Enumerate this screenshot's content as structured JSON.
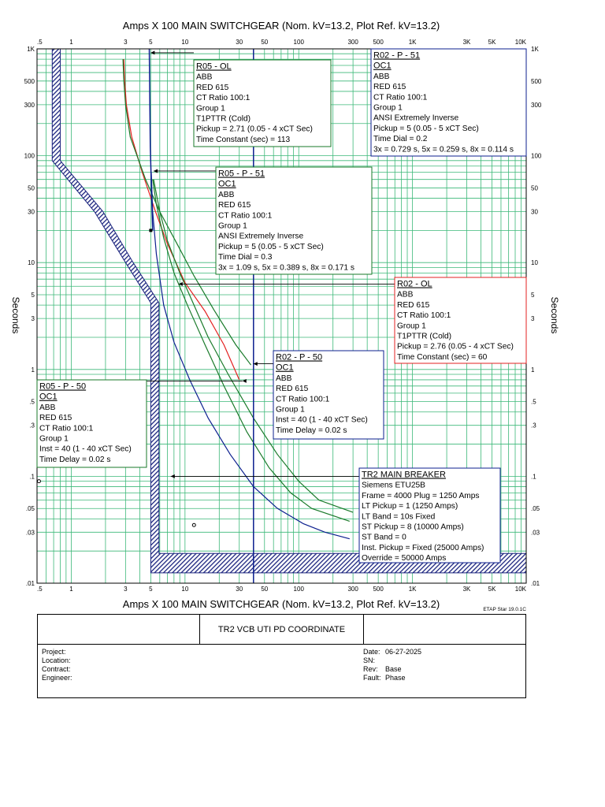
{
  "chart_data": {
    "type": "line",
    "title_top": "Amps  X  100   MAIN SWITCHGEAR (Nom. kV=13.2, Plot Ref. kV=13.2)",
    "title_bottom": "Amps  X  100   MAIN SWITCHGEAR (Nom. kV=13.2, Plot Ref. kV=13.2)",
    "ylabel": "Seconds",
    "x_scale": "log",
    "y_scale": "log",
    "xlim": [
      0.5,
      10000
    ],
    "ylim": [
      0.01,
      1000
    ],
    "x_ticks": [
      {
        "v": 0.5,
        "t": ".5"
      },
      {
        "v": 1,
        "t": "1"
      },
      {
        "v": 3,
        "t": "3"
      },
      {
        "v": 5,
        "t": "5"
      },
      {
        "v": 10,
        "t": "10"
      },
      {
        "v": 30,
        "t": "30"
      },
      {
        "v": 50,
        "t": "50"
      },
      {
        "v": 100,
        "t": "100"
      },
      {
        "v": 300,
        "t": "300"
      },
      {
        "v": 500,
        "t": "500"
      },
      {
        "v": 1000,
        "t": "1K"
      },
      {
        "v": 3000,
        "t": "3K"
      },
      {
        "v": 5000,
        "t": "5K"
      },
      {
        "v": 10000,
        "t": "10K"
      }
    ],
    "y_ticks": [
      {
        "v": 0.01,
        "t": ".01"
      },
      {
        "v": 0.03,
        "t": ".03"
      },
      {
        "v": 0.05,
        "t": ".05"
      },
      {
        "v": 0.1,
        "t": ".1"
      },
      {
        "v": 0.3,
        "t": ".3"
      },
      {
        "v": 0.5,
        "t": ".5"
      },
      {
        "v": 1,
        "t": "1"
      },
      {
        "v": 3,
        "t": "3"
      },
      {
        "v": 5,
        "t": "5"
      },
      {
        "v": 10,
        "t": "10"
      },
      {
        "v": 30,
        "t": "30"
      },
      {
        "v": 50,
        "t": "50"
      },
      {
        "v": 100,
        "t": "100"
      },
      {
        "v": 300,
        "t": "300"
      },
      {
        "v": 500,
        "t": "500"
      },
      {
        "v": 1000,
        "t": "1K"
      }
    ],
    "grid": true,
    "colors": {
      "grid": "#3cb878",
      "frame": "#000000",
      "red": "#e32020",
      "green": "#1a7a2a",
      "navy": "#0c1f8f",
      "hatch": "#1a237e"
    },
    "series": [
      {
        "id": "r02_ol",
        "color": "red",
        "width": 1.2,
        "points": [
          [
            2.9,
            800
          ],
          [
            2.95,
            500
          ],
          [
            3.05,
            300
          ],
          [
            3.4,
            150
          ],
          [
            4.2,
            70
          ],
          [
            5.5,
            30
          ],
          [
            7,
            15
          ],
          [
            10,
            6.5
          ],
          [
            15,
            3.5
          ],
          [
            22,
            1.7
          ],
          [
            30,
            0.8
          ]
        ]
      },
      {
        "id": "r05_ol",
        "color": "green",
        "width": 1.2,
        "points": [
          [
            2.85,
            800
          ],
          [
            2.9,
            500
          ],
          [
            3.0,
            300
          ],
          [
            3.3,
            150
          ],
          [
            4.5,
            60
          ],
          [
            6,
            30
          ],
          [
            8.5,
            15
          ],
          [
            12,
            7.5
          ],
          [
            18,
            3.6
          ],
          [
            28,
            1.7
          ],
          [
            38,
            1.1
          ]
        ]
      },
      {
        "id": "r02_p51",
        "color": "green",
        "width": 1.2,
        "points": [
          [
            5.3,
            60
          ],
          [
            6,
            30
          ],
          [
            7,
            16
          ],
          [
            9,
            8
          ],
          [
            12,
            4
          ],
          [
            16,
            2
          ],
          [
            24,
            0.9
          ],
          [
            40,
            0.35
          ],
          [
            65,
            0.16
          ],
          [
            100,
            0.09
          ],
          [
            150,
            0.06
          ],
          [
            300,
            0.046
          ]
        ]
      },
      {
        "id": "r05_p51",
        "color": "green",
        "width": 1.2,
        "points": [
          [
            5.2,
            60
          ],
          [
            5.6,
            35
          ],
          [
            6.5,
            17
          ],
          [
            8,
            8
          ],
          [
            10.5,
            4
          ],
          [
            15,
            1.7
          ],
          [
            22,
            0.7
          ],
          [
            35,
            0.26
          ],
          [
            55,
            0.12
          ],
          [
            85,
            0.07
          ],
          [
            130,
            0.05
          ],
          [
            280,
            0.038
          ]
        ]
      },
      {
        "id": "tr2_lt",
        "color": "navy",
        "width": 1.2,
        "points": [
          [
            5.05,
            70
          ],
          [
            5.2,
            30
          ],
          [
            5.6,
            12
          ],
          [
            6.5,
            4
          ],
          [
            8,
            1.8
          ],
          [
            11,
            0.8
          ],
          [
            16,
            0.35
          ],
          [
            25,
            0.16
          ],
          [
            40,
            0.08
          ],
          [
            65,
            0.05
          ],
          [
            110,
            0.036
          ],
          [
            170,
            0.03
          ],
          [
            280,
            0.026
          ]
        ]
      },
      {
        "id": "tr2_vert",
        "color": "navy",
        "width": 1.5,
        "points": [
          [
            4.85,
            1000
          ],
          [
            4.95,
            120
          ],
          [
            5.1,
            40
          ],
          [
            5.2,
            20
          ]
        ]
      },
      {
        "id": "r02_p50_inst",
        "color": "navy",
        "width": 1.5,
        "points": [
          [
            40,
            1000
          ],
          [
            40,
            0.01
          ]
        ]
      }
    ],
    "damage_band": {
      "color": "hatch",
      "upper": [
        [
          0.8,
          1000
        ],
        [
          0.8,
          90
        ],
        [
          1.9,
          30
        ],
        [
          3.5,
          10
        ],
        [
          5.9,
          4.2
        ],
        [
          5.9,
          0.019
        ],
        [
          10000,
          0.019
        ]
      ],
      "lower": [
        [
          0.68,
          1000
        ],
        [
          0.68,
          90
        ],
        [
          1.6,
          30
        ],
        [
          3.0,
          10
        ],
        [
          5.0,
          4.2
        ],
        [
          5.0,
          0.0125
        ],
        [
          10000,
          0.0125
        ]
      ]
    },
    "markers": [
      {
        "x": 5.0,
        "y": 20,
        "shape": "square"
      },
      {
        "x": 0.52,
        "y": 0.09,
        "shape": "circle"
      },
      {
        "x": 12,
        "y": 0.035,
        "shape": "circle"
      }
    ],
    "leaders": [
      {
        "label": "r05_ol",
        "x": 5.0,
        "y": 920,
        "to": "R05 - OL"
      },
      {
        "label": "r05_p51",
        "x": 5.3,
        "y": 72,
        "to": "R05 - P - 51"
      },
      {
        "label": "r02_ol",
        "x": 8.8,
        "y": 6.3,
        "to": "R02 - OL"
      },
      {
        "label": "r02_p50",
        "x": 40,
        "y": 1.13,
        "to": "R02 - P - 50"
      },
      {
        "label": "r05_p50",
        "x": 32,
        "y": 0.78,
        "to": "R05 - P - 50"
      },
      {
        "label": "tr2",
        "x": 7.5,
        "y": 0.1,
        "to": "TR2 MAIN BREAKER"
      }
    ],
    "annotations": [
      {
        "id": "r05_ol",
        "color": "green",
        "title": "R05 - OL",
        "lines": [
          "ABB",
          "RED 615",
          "CT Ratio 100:1",
          "Group 1",
          "T1PTTR (Cold)",
          "Pickup = 2.71 (0.05 - 4  xCT Sec)",
          "Time Constant (sec) = 113"
        ]
      },
      {
        "id": "r02_p51",
        "color": "navy",
        "title": "R02 - P - 51",
        "subtitle": "OC1",
        "lines": [
          "ABB",
          "RED 615",
          "CT Ratio 100:1",
          "Group 1",
          "ANSI Extremely Inverse",
          "Pickup = 5 (0.05 - 5  xCT Sec)",
          "Time Dial = 0.2",
          "3x = 0.729 s, 5x = 0.259 s, 8x = 0.114 s"
        ]
      },
      {
        "id": "r05_p51",
        "color": "green",
        "title": "R05 - P - 51",
        "subtitle": "OC1",
        "lines": [
          "ABB",
          "RED 615",
          "CT Ratio 100:1",
          "Group 1",
          "ANSI Extremely Inverse",
          "Pickup = 5 (0.05 - 5  xCT Sec)",
          "Time Dial = 0.3",
          "3x = 1.09 s, 5x = 0.389 s, 8x = 0.171 s"
        ]
      },
      {
        "id": "r02_ol",
        "color": "red",
        "title": "R02 - OL",
        "lines": [
          "ABB",
          "RED 615",
          "CT Ratio 100:1",
          "Group 1",
          "T1PTTR (Cold)",
          "Pickup = 2.76 (0.05 - 4  xCT Sec)",
          "Time Constant (sec) = 60"
        ]
      },
      {
        "id": "r02_p50",
        "color": "navy",
        "title": "R02 - P - 50",
        "subtitle": "OC1",
        "lines": [
          "ABB",
          "RED 615",
          "CT Ratio 100:1",
          "Group 1",
          "Inst = 40 (1 - 40  xCT Sec)",
          "Time Delay = 0.02 s"
        ]
      },
      {
        "id": "r05_p50",
        "color": "green",
        "title": "R05 - P - 50",
        "subtitle": "OC1",
        "lines": [
          "ABB",
          "RED 615",
          "CT Ratio 100:1",
          "Group 1",
          "Inst = 40 (1 - 40  xCT Sec)",
          "Time Delay = 0.02 s"
        ]
      },
      {
        "id": "tr2",
        "color": "navy",
        "title": "TR2 MAIN BREAKER",
        "lines": [
          "Siemens  ETU25B",
          "Frame = 4000 Plug = 1250 Amps",
          "LT Pickup = 1 (1250 Amps)",
          "LT Band = 10s Fixed",
          "ST Pickup = 8 (10000 Amps)",
          "ST Band = 0",
          "Inst. Pickup = Fixed (25000 Amps)",
          "Override = 50000 Amps"
        ]
      }
    ]
  },
  "footer": {
    "software": "ETAP Star 19.0.1C",
    "drawing_title": "TR2 VCB UTI PD COORDINATE",
    "project_label": "Project:",
    "location_label": "Location:",
    "contract_label": "Contract:",
    "engineer_label": "Engineer:",
    "date_label": "Date:",
    "date_value": "06-27-2025",
    "sn_label": "SN:",
    "sn_value": "",
    "rev_label": "Rev:",
    "rev_value": "Base",
    "fault_label": "Fault:",
    "fault_value": "Phase"
  }
}
